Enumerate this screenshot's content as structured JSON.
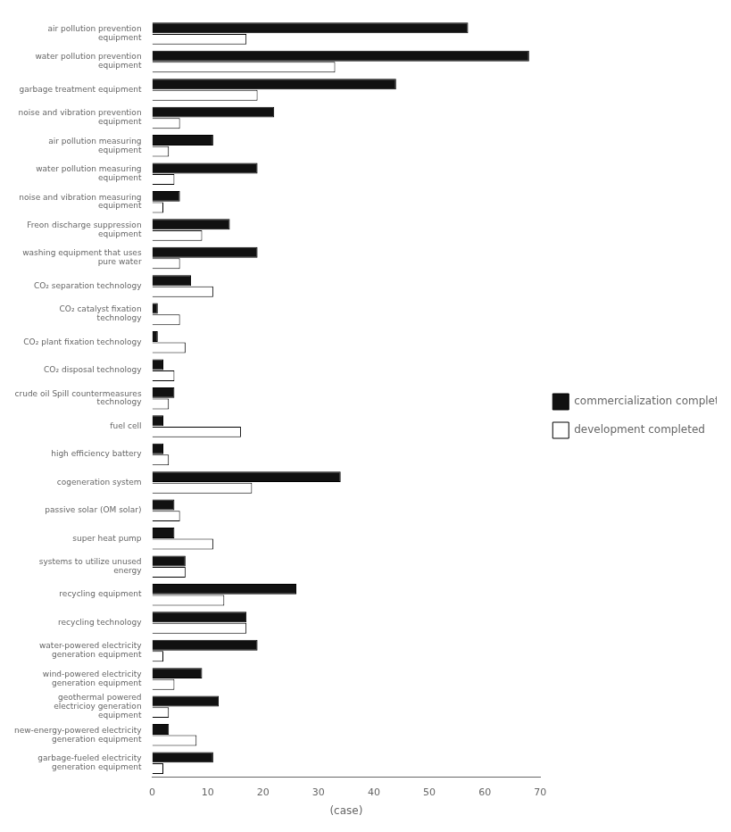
{
  "chart_data": {
    "type": "bar",
    "orientation": "horizontal",
    "categories": [
      "air pollution prevention\nequipment",
      "water pollution prevention\nequipment",
      "garbage treatment equipment",
      "noise and vibration prevention\nequipment",
      "air pollution measuring\nequipment",
      "water pollution measuring\nequipment",
      "noise and vibration measuring\nequipment",
      "Freon discharge suppression\nequipment",
      "washing equipment that uses\npure water",
      "CO₂ separation technology",
      "CO₂ catalyst fixation\ntechnology",
      "CO₂ plant fixation technology",
      "CO₂ disposal technology",
      "crude oil Spill countermeasures\ntechnology",
      "fuel cell",
      "high efficiency battery",
      "cogeneration system",
      "passive solar (OM solar)",
      "super heat pump",
      "systems to utilize unused\nenergy",
      "recycling equipment",
      "recycling technology",
      "water-powered electricity\ngeneration equipment",
      "wind-powered electricity\ngeneration equipment",
      "geothermal powered\nelectricioy generation\nequipment",
      "new-energy-powered electricity\ngeneration equipment",
      "garbage-fueled electricity\ngeneration equipment"
    ],
    "series": [
      {
        "name": "commercialization\ncompleted",
        "color": "#111111",
        "values": [
          57,
          68,
          44,
          22,
          11,
          19,
          5,
          14,
          19,
          7,
          1,
          1,
          2,
          4,
          2,
          2,
          34,
          4,
          4,
          6,
          26,
          17,
          19,
          9,
          12,
          3,
          11
        ]
      },
      {
        "name": "development\ncompleted",
        "color": "#ffffff",
        "values": [
          17,
          33,
          19,
          5,
          3,
          4,
          2,
          9,
          5,
          11,
          5,
          6,
          4,
          3,
          16,
          3,
          18,
          5,
          11,
          6,
          13,
          17,
          2,
          4,
          3,
          8,
          2
        ]
      }
    ],
    "xlabel": "(case)",
    "xlim": [
      0,
      70
    ],
    "xticks": [
      0,
      10,
      20,
      30,
      40,
      50,
      60,
      70
    ],
    "grid": false,
    "legend": "right"
  }
}
